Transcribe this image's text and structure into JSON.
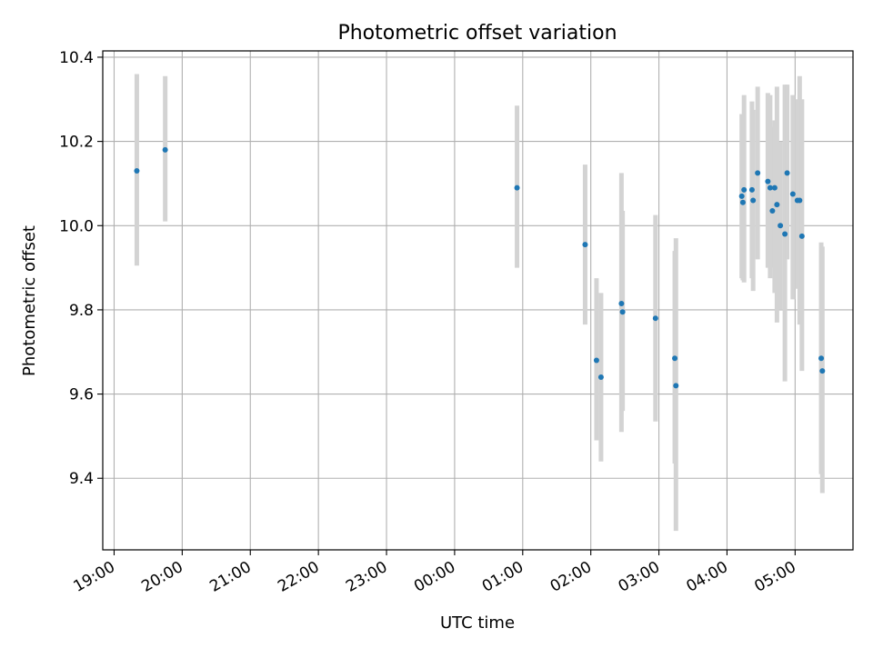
{
  "chart_data": {
    "type": "scatter",
    "title": "Photometric offset variation",
    "xlabel": "UTC time",
    "ylabel": "Photometric offset",
    "x_unit": "UTC time (HH:MM), day boundary between 23:00 and 00:00",
    "x_tick_labels": [
      "19:00",
      "20:00",
      "21:00",
      "22:00",
      "23:00",
      "00:00",
      "01:00",
      "02:00",
      "03:00",
      "04:00",
      "05:00"
    ],
    "y_ticks": [
      9.4,
      9.6,
      9.8,
      10.0,
      10.2,
      10.4
    ],
    "y_tick_labels": [
      "9.4",
      "9.6",
      "9.8",
      "10.0",
      "10.2",
      "10.4"
    ],
    "xlim": [
      "18:50",
      "05:51"
    ],
    "ylim": [
      9.23,
      10.415
    ],
    "grid": true,
    "marker_color": "#1f77b4",
    "errorbar_color": "#d3d3d3",
    "points": [
      {
        "time": "19:20",
        "y": 10.13,
        "low": 9.905,
        "high": 10.36
      },
      {
        "time": "19:45",
        "y": 10.18,
        "low": 10.01,
        "high": 10.355
      },
      {
        "time": "00:55",
        "y": 10.09,
        "low": 9.9,
        "high": 10.285
      },
      {
        "time": "01:55",
        "y": 9.955,
        "low": 9.765,
        "high": 10.145
      },
      {
        "time": "02:05",
        "y": 9.68,
        "low": 9.49,
        "high": 9.875
      },
      {
        "time": "02:09",
        "y": 9.64,
        "low": 9.44,
        "high": 9.84
      },
      {
        "time": "02:27",
        "y": 9.815,
        "low": 9.51,
        "high": 10.125
      },
      {
        "time": "02:28",
        "y": 9.795,
        "low": 9.56,
        "high": 10.035
      },
      {
        "time": "02:57",
        "y": 9.78,
        "low": 9.535,
        "high": 10.025
      },
      {
        "time": "03:14",
        "y": 9.685,
        "low": 9.435,
        "high": 9.94
      },
      {
        "time": "03:15",
        "y": 9.62,
        "low": 9.275,
        "high": 9.97
      },
      {
        "time": "04:13",
        "y": 10.07,
        "low": 9.875,
        "high": 10.265
      },
      {
        "time": "04:14",
        "y": 10.055,
        "low": 9.87,
        "high": 10.245
      },
      {
        "time": "04:15",
        "y": 10.085,
        "low": 9.865,
        "high": 10.31
      },
      {
        "time": "04:22",
        "y": 10.085,
        "low": 9.875,
        "high": 10.295
      },
      {
        "time": "04:23",
        "y": 10.06,
        "low": 9.845,
        "high": 10.275
      },
      {
        "time": "04:27",
        "y": 10.125,
        "low": 9.92,
        "high": 10.33
      },
      {
        "time": "04:36",
        "y": 10.105,
        "low": 9.9,
        "high": 10.315
      },
      {
        "time": "04:38",
        "y": 10.09,
        "low": 9.875,
        "high": 10.31
      },
      {
        "time": "04:40",
        "y": 10.035,
        "low": 9.9,
        "high": 10.235
      },
      {
        "time": "04:42",
        "y": 10.09,
        "low": 9.84,
        "high": 10.25
      },
      {
        "time": "04:44",
        "y": 10.05,
        "low": 9.77,
        "high": 10.33
      },
      {
        "time": "04:47",
        "y": 10.0,
        "low": 9.8,
        "high": 10.2
      },
      {
        "time": "04:51",
        "y": 9.98,
        "low": 9.63,
        "high": 10.335
      },
      {
        "time": "04:53",
        "y": 10.125,
        "low": 9.92,
        "high": 10.335
      },
      {
        "time": "04:58",
        "y": 10.075,
        "low": 9.825,
        "high": 10.31
      },
      {
        "time": "05:02",
        "y": 10.06,
        "low": 9.85,
        "high": 10.3
      },
      {
        "time": "05:04",
        "y": 10.06,
        "low": 9.765,
        "high": 10.355
      },
      {
        "time": "05:06",
        "y": 9.975,
        "low": 9.655,
        "high": 10.3
      },
      {
        "time": "05:23",
        "y": 9.685,
        "low": 9.41,
        "high": 9.96
      },
      {
        "time": "05:24",
        "y": 9.655,
        "low": 9.365,
        "high": 9.95
      }
    ]
  }
}
